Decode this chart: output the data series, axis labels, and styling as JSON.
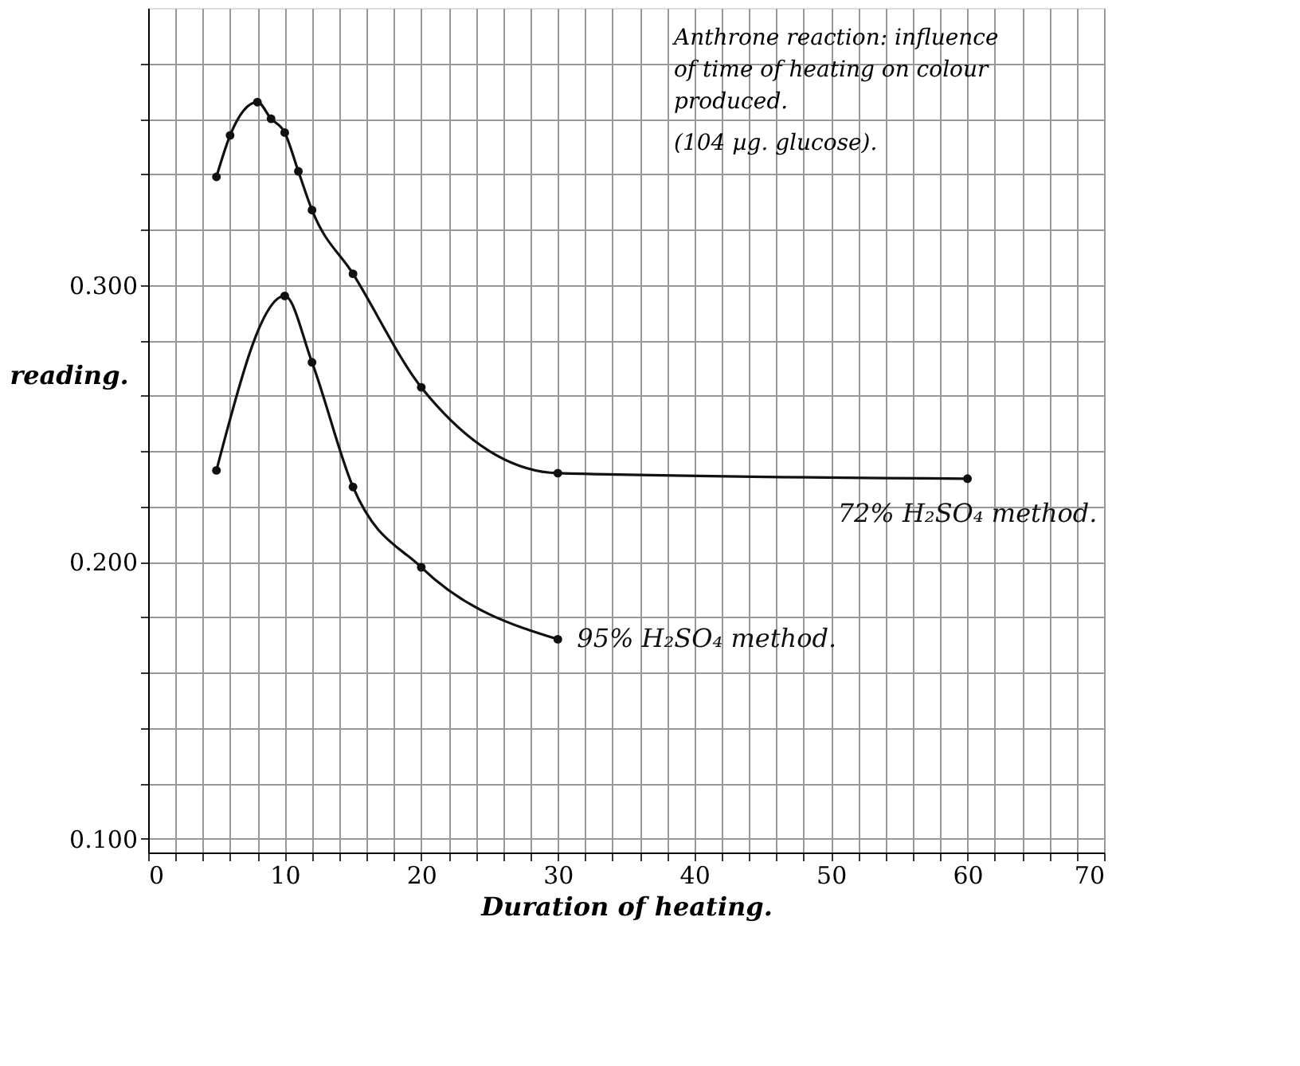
{
  "chart_data": {
    "type": "line",
    "xlabel": "Duration of heating.",
    "ylabel": "reading.",
    "annotations": [
      "Anthrone reaction: influence of time of heating on colour produced.",
      "(104 µg. glucose)."
    ],
    "series": [
      {
        "name": "72% H₂SO₄ method.",
        "color": "#111111",
        "x": [
          5,
          6,
          8,
          9,
          10,
          11,
          12,
          15,
          20,
          30,
          60
        ],
        "values": [
          0.339,
          0.354,
          0.366,
          0.36,
          0.355,
          0.341,
          0.327,
          0.304,
          0.263,
          0.232,
          0.23
        ]
      },
      {
        "name": "95% H₂SO₄ method.",
        "color": "#111111",
        "x": [
          5,
          10,
          12,
          15,
          20,
          30
        ],
        "values": [
          0.233,
          0.296,
          0.272,
          0.227,
          0.198,
          0.172
        ]
      }
    ],
    "xlim": [
      0,
      70
    ],
    "ylim": [
      0.095,
      0.4
    ],
    "xticks": [
      0,
      {
        "value": 2,
        "label": null
      },
      {
        "value": 4,
        "label": null
      },
      {
        "value": 6,
        "label": null
      },
      {
        "value": 8,
        "label": null
      },
      10,
      {
        "value": 12,
        "label": null
      },
      {
        "value": 14,
        "label": null
      },
      {
        "value": 16,
        "label": null
      },
      {
        "value": 18,
        "label": null
      },
      20,
      {
        "value": 22,
        "label": null
      },
      {
        "value": 24,
        "label": null
      },
      {
        "value": 26,
        "label": null
      },
      {
        "value": 28,
        "label": null
      },
      30,
      {
        "value": 32,
        "label": null
      },
      {
        "value": 34,
        "label": null
      },
      {
        "value": 36,
        "label": null
      },
      {
        "value": 38,
        "label": null
      },
      40,
      {
        "value": 42,
        "label": null
      },
      {
        "value": 44,
        "label": null
      },
      {
        "value": 46,
        "label": null
      },
      {
        "value": 48,
        "label": null
      },
      50,
      {
        "value": 52,
        "label": null
      },
      {
        "value": 54,
        "label": null
      },
      {
        "value": 56,
        "label": null
      },
      {
        "value": 58,
        "label": null
      },
      60,
      {
        "value": 62,
        "label": null
      },
      {
        "value": 64,
        "label": null
      },
      {
        "value": 66,
        "label": null
      },
      {
        "value": 68,
        "label": null
      },
      70
    ],
    "yticks": [
      {
        "value": 0.1,
        "label": "0.100"
      },
      {
        "value": 0.12,
        "label": null
      },
      {
        "value": 0.14,
        "label": null
      },
      {
        "value": 0.16,
        "label": null
      },
      {
        "value": 0.18,
        "label": null
      },
      {
        "value": 0.2,
        "label": "0.200"
      },
      {
        "value": 0.22,
        "label": null
      },
      {
        "value": 0.24,
        "label": null
      },
      {
        "value": 0.26,
        "label": null
      },
      {
        "value": 0.28,
        "label": null
      },
      {
        "value": 0.3,
        "label": "0.300"
      },
      {
        "value": 0.32,
        "label": null
      },
      {
        "value": 0.34,
        "label": null
      },
      {
        "value": 0.36,
        "label": null
      },
      {
        "value": 0.38,
        "label": null
      }
    ],
    "grid": true,
    "marker": "circle",
    "line_style": "solid"
  }
}
